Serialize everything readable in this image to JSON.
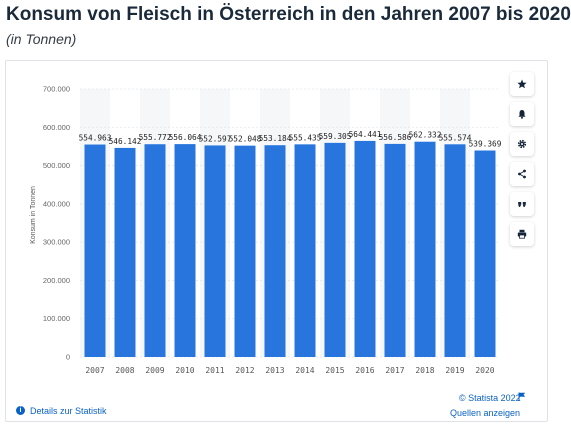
{
  "title": "Konsum von Fleisch in Österreich in den Jahren 2007 bis 2020",
  "subtitle": "(in Tonnen)",
  "chart_data": {
    "type": "bar",
    "title": "Konsum von Fleisch in Österreich in den Jahren 2007 bis 2020",
    "subtitle": "(in Tonnen)",
    "xlabel": "",
    "ylabel": "Konsum in Tonnen",
    "ylim": [
      0,
      700000
    ],
    "yticks": [
      0,
      100000,
      200000,
      300000,
      400000,
      500000,
      600000,
      700000
    ],
    "ytick_labels": [
      "0",
      "100.000",
      "200.000",
      "300.000",
      "400.000",
      "500.000",
      "600.000",
      "700.000"
    ],
    "categories": [
      "2007",
      "2008",
      "2009",
      "2010",
      "2011",
      "2012",
      "2013",
      "2014",
      "2015",
      "2016",
      "2017",
      "2018",
      "2019",
      "2020"
    ],
    "values": [
      554963,
      546142,
      555772,
      556064,
      552597,
      552048,
      553184,
      555435,
      559305,
      564441,
      556586,
      562332,
      555574,
      539369
    ],
    "value_labels": [
      "554.963",
      "546.142",
      "555.772",
      "556.064",
      "552.597",
      "552.048",
      "553.184",
      "555.435",
      "559.305",
      "564.441",
      "556.586",
      "562.332",
      "555.574",
      "539.369"
    ],
    "bar_color": "#2876dd",
    "grid": true,
    "legend": "none"
  },
  "sidebar": {
    "buttons": [
      {
        "icon": "star-icon",
        "name": "favorite-button"
      },
      {
        "icon": "bell-icon",
        "name": "notification-button"
      },
      {
        "icon": "gear-icon",
        "name": "settings-button"
      },
      {
        "icon": "share-icon",
        "name": "share-button"
      },
      {
        "icon": "quote-icon",
        "name": "cite-button"
      },
      {
        "icon": "print-icon",
        "name": "print-button"
      }
    ]
  },
  "footer": {
    "copyright": "© Statista 2022",
    "details_link": "Details zur Statistik",
    "sources_link": "Quellen anzeigen"
  }
}
